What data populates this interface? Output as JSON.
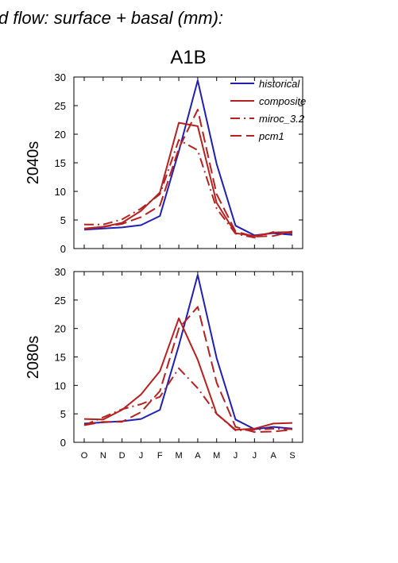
{
  "figure": {
    "title": "d flow: surface + basal (mm):",
    "scenario": "A1B"
  },
  "colors": {
    "historical": "#2020b0",
    "composite": "#b52020",
    "miroc_3.2": "#b52020",
    "pcm1": "#b52020"
  },
  "chart_data": [
    {
      "type": "line",
      "panel_label": "2040s",
      "categories": [
        "O",
        "N",
        "D",
        "J",
        "F",
        "M",
        "A",
        "M",
        "J",
        "J",
        "A",
        "S"
      ],
      "ylim": [
        0,
        30
      ],
      "yticks": [
        0,
        5,
        10,
        15,
        20,
        25,
        30
      ],
      "legend_position": "top-right",
      "series": [
        {
          "name": "historical",
          "style": "solid",
          "color": "#2020b0",
          "values": [
            3.3,
            3.5,
            3.7,
            4.1,
            5.7,
            17.0,
            29.4,
            14.8,
            4.0,
            2.3,
            2.7,
            2.4
          ]
        },
        {
          "name": "composite",
          "style": "solid",
          "color": "#b52020",
          "values": [
            3.5,
            3.8,
            4.5,
            6.6,
            9.8,
            22.0,
            21.4,
            8.0,
            2.7,
            2.2,
            2.8,
            2.9
          ]
        },
        {
          "name": "miroc_3.2",
          "style": "dashdot",
          "color": "#b52020",
          "values": [
            4.2,
            4.2,
            5.1,
            7.0,
            9.5,
            19.0,
            17.2,
            7.0,
            2.6,
            1.9,
            2.9,
            2.7
          ]
        },
        {
          "name": "pcm1",
          "style": "dashed",
          "color": "#b52020",
          "values": [
            3.4,
            3.8,
            4.3,
            5.5,
            7.5,
            17.5,
            24.3,
            9.5,
            3.0,
            2.1,
            2.2,
            3.0
          ]
        }
      ]
    },
    {
      "type": "line",
      "panel_label": "2080s",
      "categories": [
        "O",
        "N",
        "D",
        "J",
        "F",
        "M",
        "A",
        "M",
        "J",
        "J",
        "A",
        "S"
      ],
      "ylim": [
        0,
        30
      ],
      "yticks": [
        0,
        5,
        10,
        15,
        20,
        25,
        30
      ],
      "series": [
        {
          "name": "historical",
          "style": "solid",
          "color": "#2020b0",
          "values": [
            3.3,
            3.5,
            3.7,
            4.1,
            5.7,
            17.0,
            29.4,
            14.8,
            4.0,
            2.3,
            2.7,
            2.4
          ]
        },
        {
          "name": "composite",
          "style": "solid",
          "color": "#b52020",
          "values": [
            4.1,
            4.0,
            5.7,
            8.4,
            12.5,
            21.8,
            14.5,
            5.0,
            2.2,
            2.4,
            3.3,
            3.4
          ]
        },
        {
          "name": "miroc_3.2",
          "style": "dashdot",
          "color": "#b52020",
          "values": [
            3.0,
            4.4,
            5.8,
            6.7,
            8.0,
            13.0,
            9.5,
            5.0,
            2.1,
            2.2,
            2.4,
            2.3
          ]
        },
        {
          "name": "pcm1",
          "style": "dashed",
          "color": "#b52020",
          "values": [
            3.0,
            3.6,
            3.6,
            5.3,
            9.0,
            20.0,
            23.8,
            10.5,
            2.7,
            1.8,
            1.9,
            2.2
          ]
        }
      ]
    }
  ]
}
